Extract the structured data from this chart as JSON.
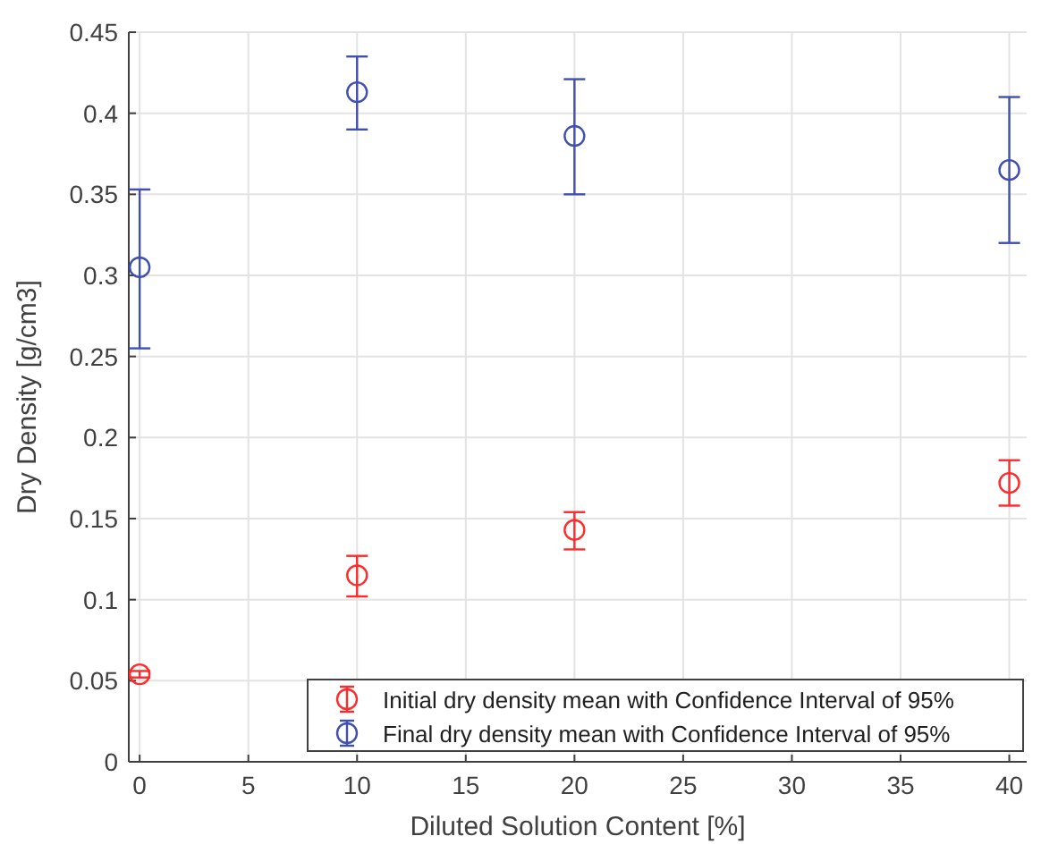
{
  "chart_data": {
    "type": "scatter",
    "xlabel": "Diluted Solution Content [%]",
    "ylabel": "Dry Density [g/cm3]",
    "x": [
      0,
      10,
      20,
      40
    ],
    "series": [
      {
        "name": "Initial dry density mean with Confidence Interval of 95%",
        "color": "#ff2a2a",
        "values": [
          0.054,
          0.115,
          0.143,
          0.172
        ],
        "errors": [
          [
            0.052,
            0.056
          ],
          [
            0.102,
            0.127
          ],
          [
            0.131,
            0.154
          ],
          [
            0.158,
            0.186
          ]
        ]
      },
      {
        "name": "Final dry density mean with Confidence Interval of 95%",
        "color": "#3f4fb4",
        "values": [
          0.305,
          0.413,
          0.386,
          0.365
        ],
        "errors": [
          [
            0.255,
            0.353
          ],
          [
            0.39,
            0.435
          ],
          [
            0.35,
            0.421
          ],
          [
            0.32,
            0.41
          ]
        ]
      }
    ],
    "xlim": [
      -0.5,
      40.8
    ],
    "ylim": [
      0,
      0.45
    ],
    "xticks": [
      0,
      5,
      10,
      15,
      20,
      25,
      30,
      35,
      40
    ],
    "yticks": [
      0,
      0.05,
      0.1,
      0.15,
      0.2,
      0.25,
      0.3,
      0.35,
      0.4,
      0.45
    ],
    "grid": true,
    "legend": "bottom right",
    "marker": "circle"
  }
}
